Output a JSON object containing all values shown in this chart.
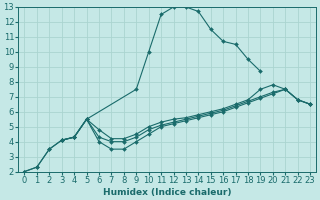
{
  "xlabel": "Humidex (Indice chaleur)",
  "xlim": [
    -0.5,
    23.5
  ],
  "ylim": [
    2,
    13
  ],
  "xticks": [
    0,
    1,
    2,
    3,
    4,
    5,
    6,
    7,
    8,
    9,
    10,
    11,
    12,
    13,
    14,
    15,
    16,
    17,
    18,
    19,
    20,
    21,
    22,
    23
  ],
  "yticks": [
    2,
    3,
    4,
    5,
    6,
    7,
    8,
    9,
    10,
    11,
    12,
    13
  ],
  "bg_color": "#c5e8e6",
  "grid_color": "#aad4d0",
  "line_color": "#1a6b6b",
  "series": [
    {
      "x": [
        0,
        1,
        2,
        3,
        4,
        5,
        9,
        10,
        11,
        12,
        13,
        14,
        15,
        16,
        17,
        18,
        19
      ],
      "y": [
        2.0,
        2.3,
        3.5,
        4.1,
        4.3,
        5.5,
        7.5,
        10.0,
        12.5,
        13.0,
        13.0,
        12.7,
        11.5,
        10.7,
        10.5,
        9.5,
        8.7
      ]
    },
    {
      "x": [
        0,
        1,
        2,
        3,
        4,
        5,
        6,
        7,
        8,
        9,
        10,
        11,
        12,
        13,
        14,
        15,
        16,
        17,
        18,
        19,
        20,
        21,
        22,
        23
      ],
      "y": [
        2.0,
        2.3,
        3.5,
        4.1,
        4.3,
        5.5,
        4.8,
        4.2,
        4.2,
        4.5,
        5.0,
        5.3,
        5.5,
        5.6,
        5.8,
        6.0,
        6.2,
        6.5,
        6.8,
        7.5,
        7.8,
        7.5,
        6.8,
        6.5
      ]
    },
    {
      "x": [
        3,
        4,
        5,
        6,
        7,
        8,
        9,
        10,
        11,
        12,
        13,
        14,
        15,
        16,
        17,
        18,
        19,
        20,
        21,
        22,
        23
      ],
      "y": [
        4.1,
        4.3,
        5.5,
        4.3,
        4.0,
        4.0,
        4.3,
        4.8,
        5.1,
        5.3,
        5.5,
        5.7,
        5.9,
        6.1,
        6.4,
        6.7,
        7.0,
        7.3,
        7.5,
        6.8,
        6.5
      ]
    },
    {
      "x": [
        3,
        4,
        5,
        6,
        7,
        8,
        9,
        10,
        11,
        12,
        13,
        14,
        15,
        16,
        17,
        18,
        19,
        20,
        21,
        22,
        23
      ],
      "y": [
        4.1,
        4.3,
        5.5,
        4.0,
        3.5,
        3.5,
        4.0,
        4.5,
        5.0,
        5.2,
        5.4,
        5.6,
        5.8,
        6.0,
        6.3,
        6.6,
        6.9,
        7.2,
        7.5,
        6.8,
        6.5
      ]
    }
  ],
  "font_size": 6.5,
  "marker": "D",
  "marker_size": 2.0,
  "linewidth": 0.8
}
